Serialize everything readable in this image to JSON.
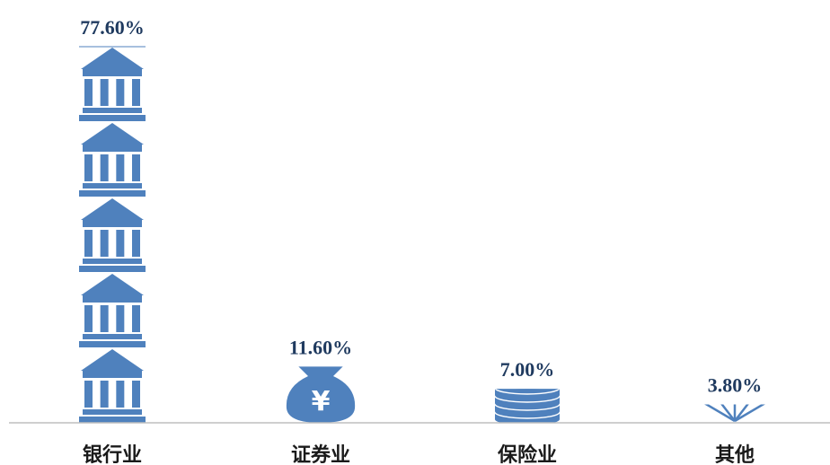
{
  "chart_data": {
    "type": "bar",
    "categories": [
      "银行业",
      "证券业",
      "保险业",
      "其他"
    ],
    "values": [
      77.6,
      11.6,
      7.0,
      3.8
    ],
    "value_labels": [
      "77.60%",
      "11.60%",
      "7.00%",
      "3.80%"
    ],
    "icons": [
      "bank-icon",
      "money-bag-icon",
      "coin-stack-icon",
      "fan-icon"
    ],
    "bar_color": "#4f81bd",
    "axis_color": "#bfbfbf",
    "label_color": "#1f3a5f",
    "ylim": [
      0,
      77.6
    ],
    "grid": false,
    "title": "",
    "xlabel": "",
    "ylabel": ""
  }
}
